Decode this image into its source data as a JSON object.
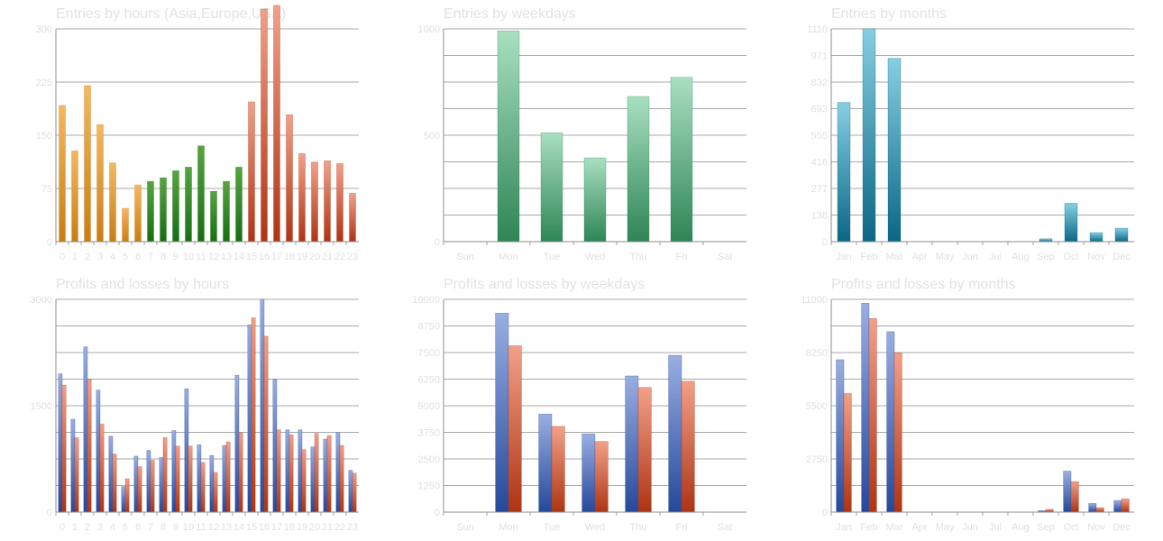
{
  "colors": {
    "orange": [
      "#f4b860",
      "#c97d13"
    ],
    "green": [
      "#56a540",
      "#166e12"
    ],
    "red": [
      "#f2a088",
      "#ad3414"
    ],
    "mint": [
      "#a9dfc2",
      "#2e8555"
    ],
    "teal": [
      "#86cfe2",
      "#0a6685"
    ],
    "blue": [
      "#9aaee2",
      "#25489a"
    ],
    "grid": "#8c8c8c"
  },
  "chart_data": [
    {
      "type": "bar",
      "title": "Entries by hours (Asia,Europe,USA)",
      "categories": [
        "0",
        "1",
        "2",
        "3",
        "4",
        "5",
        "6",
        "7",
        "8",
        "9",
        "10",
        "11",
        "12",
        "13",
        "14",
        "15",
        "16",
        "17",
        "18",
        "19",
        "20",
        "21",
        "22",
        "23"
      ],
      "yticks": [
        "0",
        "75",
        "150",
        "225",
        "300"
      ],
      "ylim": [
        0,
        300
      ],
      "series": [
        {
          "values": [
            192,
            128,
            220,
            165,
            111,
            47,
            80,
            85,
            90,
            100,
            105,
            135,
            71,
            85,
            105,
            197,
            328,
            333,
            179,
            124,
            112,
            114,
            110,
            68
          ]
        }
      ],
      "bar_colors": [
        "orange",
        "orange",
        "orange",
        "orange",
        "orange",
        "orange",
        "orange",
        "green",
        "green",
        "green",
        "green",
        "green",
        "green",
        "green",
        "green",
        "red",
        "red",
        "red",
        "red",
        "red",
        "red",
        "red",
        "red",
        "red"
      ]
    },
    {
      "type": "bar",
      "title": "Entries by weekdays",
      "categories": [
        "Sun",
        "Mon",
        "Tue",
        "Wed",
        "Thu",
        "Fri",
        "Sat"
      ],
      "yticks": [
        "0",
        "",
        "",
        "",
        "500",
        "",
        "",
        "",
        "1000"
      ],
      "ylim": [
        0,
        1000
      ],
      "series": [
        {
          "values": [
            0,
            990,
            512,
            394,
            682,
            772,
            0
          ]
        }
      ],
      "bar_colors": [
        "mint",
        "mint",
        "mint",
        "mint",
        "mint",
        "mint",
        "mint"
      ]
    },
    {
      "type": "bar",
      "title": "Entries by months",
      "categories": [
        "Jan",
        "Feb",
        "Mar",
        "Apr",
        "May",
        "Jun",
        "Jul",
        "Aug",
        "Sep",
        "Oct",
        "Nov",
        "Dec"
      ],
      "yticks": [
        "0",
        "138",
        "277",
        "416",
        "555",
        "693",
        "832",
        "971",
        "1110"
      ],
      "ylim": [
        0,
        1110
      ],
      "series": [
        {
          "values": [
            726,
            1110,
            956,
            0,
            0,
            0,
            0,
            0,
            15,
            200,
            47,
            70
          ]
        }
      ],
      "bar_colors": [
        "teal",
        "teal",
        "teal",
        "teal",
        "teal",
        "teal",
        "teal",
        "teal",
        "teal",
        "teal",
        "teal",
        "teal"
      ]
    },
    {
      "type": "bar",
      "title": "Profits and losses by hours",
      "categories": [
        "0",
        "1",
        "2",
        "3",
        "4",
        "5",
        "6",
        "7",
        "8",
        "9",
        "10",
        "11",
        "12",
        "13",
        "14",
        "15",
        "16",
        "17",
        "18",
        "19",
        "20",
        "21",
        "22",
        "23"
      ],
      "yticks": [
        "0",
        "",
        "",
        "",
        "1500",
        "",
        "",
        "",
        "3000"
      ],
      "ylim": [
        0,
        3000
      ],
      "series": [
        {
          "values": [
            1950,
            1310,
            2330,
            1720,
            1070,
            360,
            790,
            870,
            770,
            1150,
            1740,
            950,
            800,
            940,
            1930,
            2640,
            3000,
            1870,
            1160,
            1160,
            920,
            1030,
            1120,
            590
          ]
        },
        {
          "values": [
            1790,
            1050,
            1870,
            1240,
            820,
            470,
            640,
            730,
            1050,
            930,
            930,
            700,
            560,
            990,
            1120,
            2740,
            2480,
            1160,
            1090,
            880,
            1110,
            1080,
            940,
            550
          ]
        }
      ],
      "series_colors": [
        "blue",
        "red"
      ]
    },
    {
      "type": "bar",
      "title": "Profits and losses by weekdays",
      "categories": [
        "Sun",
        "Mon",
        "Tue",
        "Wed",
        "Thu",
        "Fri",
        "Sat"
      ],
      "yticks": [
        "0",
        "1250",
        "2500",
        "3750",
        "5000",
        "6250",
        "7500",
        "8750",
        "10000"
      ],
      "ylim": [
        0,
        10000
      ],
      "series": [
        {
          "values": [
            0,
            9350,
            4610,
            3680,
            6400,
            7370,
            0
          ]
        },
        {
          "values": [
            0,
            7820,
            4030,
            3320,
            5860,
            6150,
            0
          ]
        }
      ],
      "series_colors": [
        "blue",
        "red"
      ]
    },
    {
      "type": "bar",
      "title": "Profits and losses by months",
      "categories": [
        "Jan",
        "Feb",
        "Mar",
        "Apr",
        "May",
        "Jun",
        "Jul",
        "Aug",
        "Sep",
        "Oct",
        "Nov",
        "Dec"
      ],
      "yticks": [
        "0",
        "",
        "2750",
        "",
        "5500",
        "",
        "8250",
        "",
        "11000"
      ],
      "ylim": [
        0,
        11000
      ],
      "series": [
        {
          "values": [
            7880,
            10800,
            9330,
            0,
            0,
            0,
            0,
            0,
            80,
            2120,
            450,
            600
          ]
        },
        {
          "values": [
            6130,
            10010,
            8230,
            0,
            0,
            0,
            0,
            0,
            140,
            1580,
            230,
            690
          ]
        }
      ],
      "series_colors": [
        "blue",
        "red"
      ]
    }
  ]
}
